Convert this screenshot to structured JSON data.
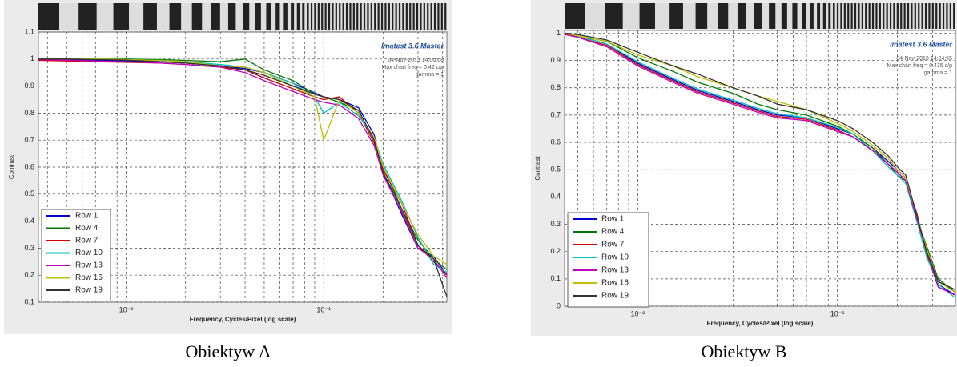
{
  "chart_data": [
    {
      "type": "line",
      "caption": "Obiektyw A",
      "ylabel": "Contrast",
      "xlabel": "Frequency, Cycles/Pixel (log scale)",
      "annotations": [
        "Imatest 3.6 Master",
        "04-Nov-2013 14:00:08",
        "Max chart freq = 0.42 c/p",
        "gamma = 1"
      ],
      "x_log": true,
      "grid": true,
      "legend": "lower left",
      "xlim": [
        0.0036,
        0.42
      ],
      "ylim": [
        0.1,
        1.1
      ],
      "xticks": [
        {
          "value": 0.01,
          "label": "10⁻²"
        },
        {
          "value": 0.1,
          "label": "10⁻¹"
        }
      ],
      "x_minor_ticks": [
        0.004,
        0.005,
        0.006,
        0.007,
        0.008,
        0.009,
        0.02,
        0.03,
        0.04,
        0.05,
        0.06,
        0.07,
        0.08,
        0.09,
        0.2,
        0.3,
        0.4
      ],
      "yticks": [
        0.1,
        0.2,
        0.3,
        0.4,
        0.5,
        0.6,
        0.7,
        0.8,
        0.9,
        1,
        1.1
      ],
      "x": [
        0.0036,
        0.005,
        0.007,
        0.01,
        0.015,
        0.02,
        0.03,
        0.04,
        0.05,
        0.07,
        0.09,
        0.1,
        0.12,
        0.15,
        0.18,
        0.2,
        0.25,
        0.3,
        0.36,
        0.42
      ],
      "series": [
        {
          "name": "Row 1",
          "color": "#0000cc",
          "values": [
            1,
            0.998,
            0.995,
            0.993,
            0.99,
            0.985,
            0.975,
            0.965,
            0.95,
            0.91,
            0.875,
            0.86,
            0.85,
            0.82,
            0.72,
            0.58,
            0.42,
            0.3,
            0.27,
            0.2
          ]
        },
        {
          "name": "Row 4",
          "color": "#007700",
          "values": [
            1,
            1,
            1,
            1,
            0.998,
            0.995,
            0.99,
            1.0,
            0.96,
            0.92,
            0.87,
            0.86,
            0.84,
            0.81,
            0.7,
            0.6,
            0.44,
            0.33,
            0.26,
            0.22
          ]
        },
        {
          "name": "Row 7",
          "color": "#cc0000",
          "values": [
            0.995,
            0.993,
            0.99,
            0.988,
            0.985,
            0.98,
            0.97,
            0.96,
            0.93,
            0.89,
            0.86,
            0.85,
            0.86,
            0.8,
            0.69,
            0.59,
            0.46,
            0.31,
            0.25,
            0.2
          ]
        },
        {
          "name": "Row 10",
          "color": "#00bfbf",
          "values": [
            1,
            1,
            1,
            0.998,
            0.995,
            0.99,
            0.98,
            0.97,
            0.95,
            0.91,
            0.86,
            0.8,
            0.84,
            0.79,
            0.71,
            0.61,
            0.47,
            0.34,
            0.24,
            0.21
          ]
        },
        {
          "name": "Row 13",
          "color": "#bf00bf",
          "values": [
            0.998,
            0.996,
            0.993,
            0.99,
            0.985,
            0.98,
            0.97,
            0.95,
            0.92,
            0.88,
            0.85,
            0.84,
            0.83,
            0.78,
            0.68,
            0.57,
            0.43,
            0.3,
            0.26,
            0.19
          ]
        },
        {
          "name": "Row 16",
          "color": "#bfbf00",
          "values": [
            1,
            1,
            1,
            0.998,
            0.995,
            0.99,
            0.975,
            0.97,
            0.95,
            0.9,
            0.86,
            0.7,
            0.85,
            0.8,
            0.71,
            0.6,
            0.46,
            0.35,
            0.27,
            0.24
          ]
        },
        {
          "name": "Row 19",
          "color": "#333333",
          "values": [
            1,
            1,
            0.998,
            0.996,
            0.99,
            0.985,
            0.975,
            0.96,
            0.94,
            0.9,
            0.87,
            0.86,
            0.85,
            0.81,
            0.7,
            0.58,
            0.44,
            0.31,
            0.26,
            0.12
          ]
        }
      ]
    },
    {
      "type": "line",
      "caption": "Obiektyw B",
      "ylabel": "Contrast",
      "xlabel": "Frequency, Cycles/Pixel (log scale)",
      "annotations": [
        "Imatest 3.6 Master",
        "04-Nov-2013 14:24:55",
        "Max chart freq = 0.435 c/p",
        "gamma = 1"
      ],
      "x_log": true,
      "grid": true,
      "legend": "lower left",
      "xlim": [
        0.0043,
        0.39
      ],
      "ylim": [
        0,
        1.01
      ],
      "xticks": [
        {
          "value": 0.01,
          "label": "10⁻²"
        },
        {
          "value": 0.1,
          "label": "10⁻¹"
        }
      ],
      "x_minor_ticks": [
        0.005,
        0.006,
        0.007,
        0.008,
        0.009,
        0.02,
        0.03,
        0.04,
        0.05,
        0.06,
        0.07,
        0.08,
        0.09,
        0.2,
        0.3
      ],
      "yticks": [
        0,
        0.1,
        0.2,
        0.3,
        0.4,
        0.5,
        0.6,
        0.7,
        0.8,
        0.9,
        1
      ],
      "x": [
        0.0043,
        0.005,
        0.007,
        0.01,
        0.015,
        0.02,
        0.03,
        0.04,
        0.05,
        0.07,
        0.1,
        0.12,
        0.15,
        0.18,
        0.2,
        0.22,
        0.25,
        0.28,
        0.32,
        0.39
      ],
      "series": [
        {
          "name": "Row 1",
          "color": "#0000cc",
          "values": [
            1,
            0.99,
            0.96,
            0.89,
            0.83,
            0.79,
            0.75,
            0.72,
            0.7,
            0.69,
            0.65,
            0.63,
            0.58,
            0.53,
            0.5,
            0.47,
            0.33,
            0.2,
            0.08,
            0.04
          ]
        },
        {
          "name": "Row 4",
          "color": "#007700",
          "values": [
            1,
            0.99,
            0.97,
            0.91,
            0.86,
            0.82,
            0.78,
            0.74,
            0.72,
            0.7,
            0.66,
            0.63,
            0.58,
            0.52,
            0.48,
            0.46,
            0.32,
            0.22,
            0.1,
            0.05
          ]
        },
        {
          "name": "Row 7",
          "color": "#cc0000",
          "values": [
            1,
            0.985,
            0.955,
            0.885,
            0.825,
            0.785,
            0.745,
            0.715,
            0.695,
            0.685,
            0.645,
            0.62,
            0.57,
            0.52,
            0.49,
            0.46,
            0.34,
            0.19,
            0.07,
            0.04
          ]
        },
        {
          "name": "Row 10",
          "color": "#00bfbf",
          "values": [
            1,
            0.99,
            0.96,
            0.895,
            0.835,
            0.795,
            0.755,
            0.725,
            0.705,
            0.69,
            0.655,
            0.63,
            0.57,
            0.51,
            0.48,
            0.45,
            0.31,
            0.18,
            0.08,
            0.03
          ]
        },
        {
          "name": "Row 13",
          "color": "#bf00bf",
          "values": [
            0.995,
            0.985,
            0.95,
            0.88,
            0.82,
            0.78,
            0.74,
            0.71,
            0.69,
            0.68,
            0.64,
            0.62,
            0.57,
            0.52,
            0.49,
            0.46,
            0.32,
            0.2,
            0.07,
            0.04
          ]
        },
        {
          "name": "Row 16",
          "color": "#bfbf00",
          "values": [
            1,
            0.99,
            0.97,
            0.92,
            0.88,
            0.84,
            0.8,
            0.77,
            0.75,
            0.72,
            0.67,
            0.64,
            0.59,
            0.54,
            0.5,
            0.47,
            0.33,
            0.21,
            0.09,
            0.05
          ]
        },
        {
          "name": "Row 19",
          "color": "#333333",
          "values": [
            1,
            0.995,
            0.975,
            0.93,
            0.88,
            0.85,
            0.8,
            0.77,
            0.74,
            0.72,
            0.68,
            0.65,
            0.6,
            0.55,
            0.51,
            0.48,
            0.33,
            0.2,
            0.09,
            0.06
          ]
        }
      ]
    }
  ]
}
